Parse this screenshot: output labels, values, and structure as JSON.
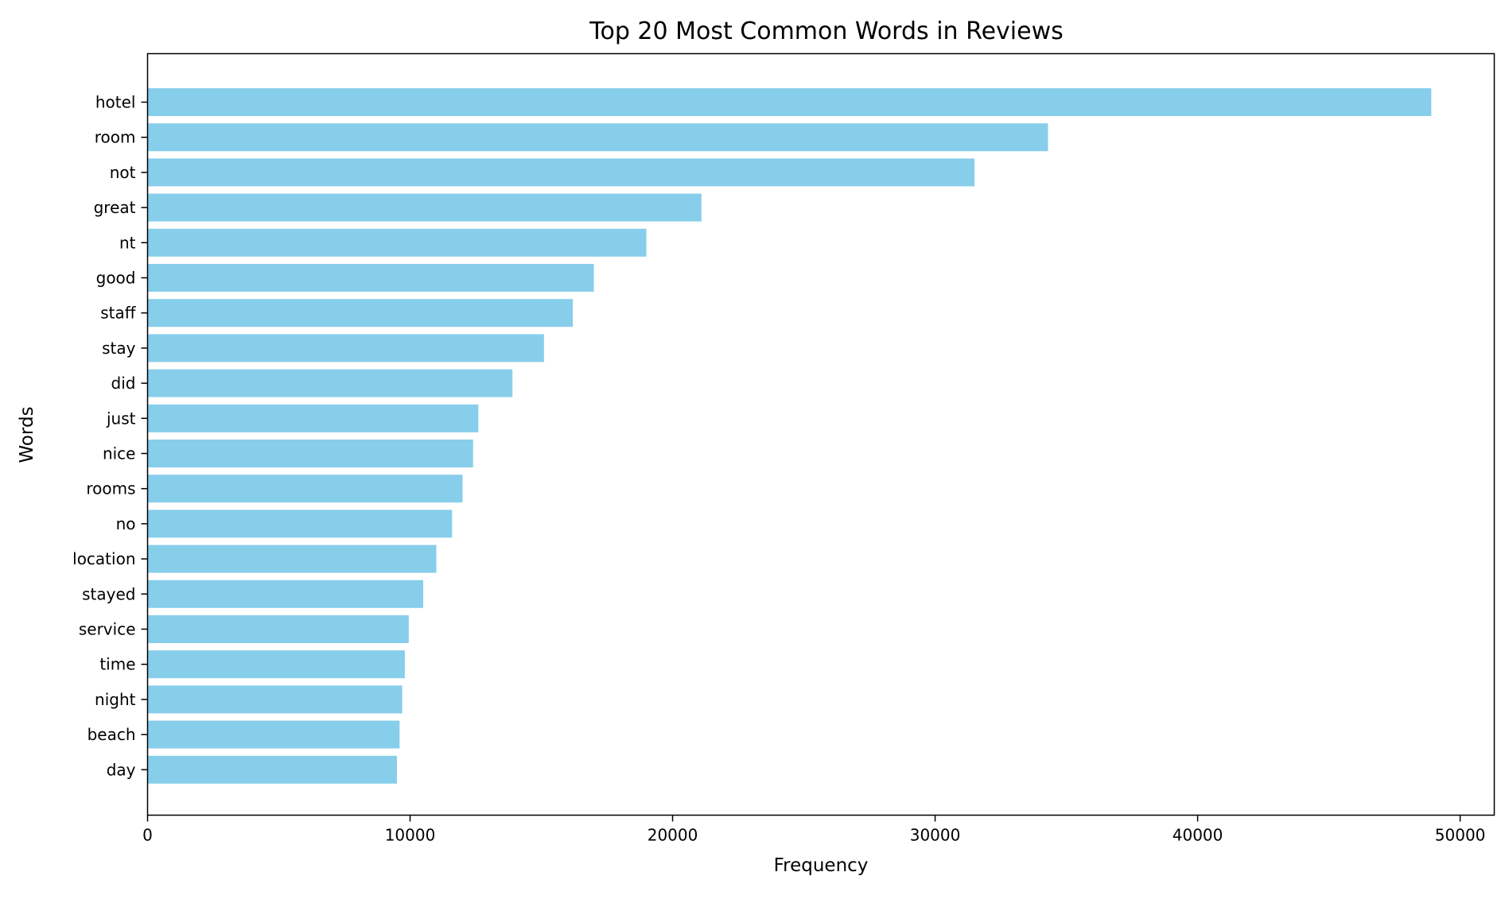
{
  "colors": {
    "bar": "#87ceeb",
    "axis": "#000000",
    "background": "#ffffff"
  },
  "chart_data": {
    "type": "bar",
    "orientation": "horizontal",
    "title": "Top 20 Most Common Words in Reviews",
    "xlabel": "Frequency",
    "ylabel": "Words",
    "categories": [
      "hotel",
      "room",
      "not",
      "great",
      "nt",
      "good",
      "staff",
      "stay",
      "did",
      "just",
      "nice",
      "rooms",
      "no",
      "location",
      "stayed",
      "service",
      "time",
      "night",
      "beach",
      "day"
    ],
    "values": [
      48900,
      34300,
      31500,
      21100,
      19000,
      17000,
      16200,
      15100,
      13900,
      12600,
      12400,
      12000,
      11600,
      11000,
      10500,
      9950,
      9800,
      9700,
      9600,
      9500
    ],
    "xlim": [
      0,
      51300
    ],
    "xticks": [
      0,
      10000,
      20000,
      30000,
      40000,
      50000
    ],
    "grid": false,
    "legend": "none"
  }
}
